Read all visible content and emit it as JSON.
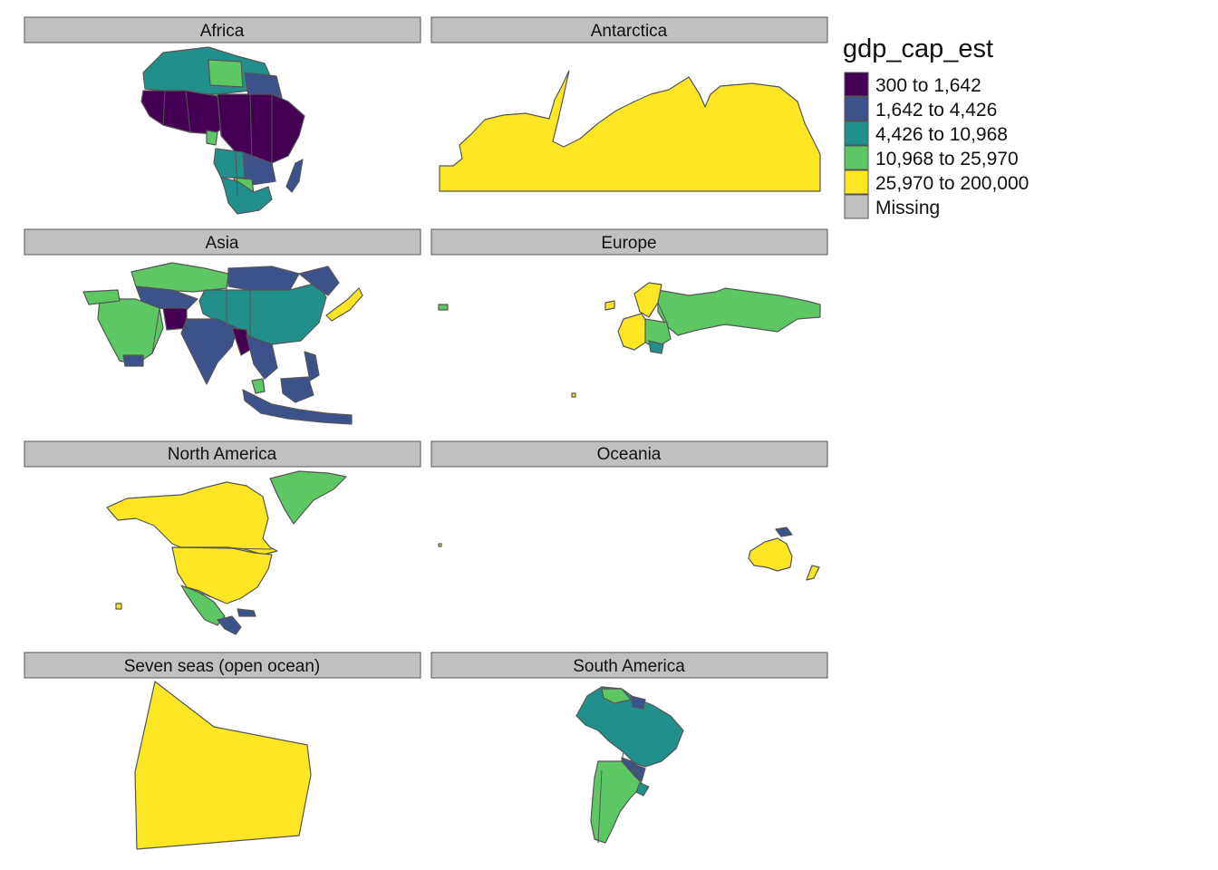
{
  "legend": {
    "title": "gdp_cap_est",
    "classes": [
      {
        "label": "300 to 1,642",
        "color": "#440154"
      },
      {
        "label": "1,642 to 4,426",
        "color": "#3b528b"
      },
      {
        "label": "4,426 to 10,968",
        "color": "#21908c"
      },
      {
        "label": "10,968 to 25,970",
        "color": "#5dc863"
      },
      {
        "label": "25,970 to 200,000",
        "color": "#fde725"
      },
      {
        "label": "Missing",
        "color": "#c1bfc2"
      }
    ]
  },
  "facets": [
    {
      "id": "africa",
      "label": "Africa",
      "dominant_classes": [
        "300 to 1,642",
        "1,642 to 4,426",
        "4,426 to 10,968",
        "10,968 to 25,970"
      ]
    },
    {
      "id": "antarctica",
      "label": "Antarctica",
      "dominant_classes": [
        "25,970 to 200,000"
      ]
    },
    {
      "id": "asia",
      "label": "Asia",
      "dominant_classes": [
        "1,642 to 4,426",
        "4,426 to 10,968",
        "10,968 to 25,970",
        "25,970 to 200,000"
      ]
    },
    {
      "id": "europe",
      "label": "Europe",
      "dominant_classes": [
        "10,968 to 25,970",
        "25,970 to 200,000"
      ]
    },
    {
      "id": "north-america",
      "label": "North America",
      "dominant_classes": [
        "25,970 to 200,000",
        "10,968 to 25,970",
        "1,642 to 4,426"
      ]
    },
    {
      "id": "oceania",
      "label": "Oceania",
      "dominant_classes": [
        "25,970 to 200,000",
        "1,642 to 4,426"
      ]
    },
    {
      "id": "seven-seas",
      "label": "Seven seas (open ocean)",
      "dominant_classes": [
        "25,970 to 200,000"
      ]
    },
    {
      "id": "south-america",
      "label": "South America",
      "dominant_classes": [
        "4,426 to 10,968",
        "10,968 to 25,970",
        "1,642 to 4,426"
      ]
    }
  ]
}
